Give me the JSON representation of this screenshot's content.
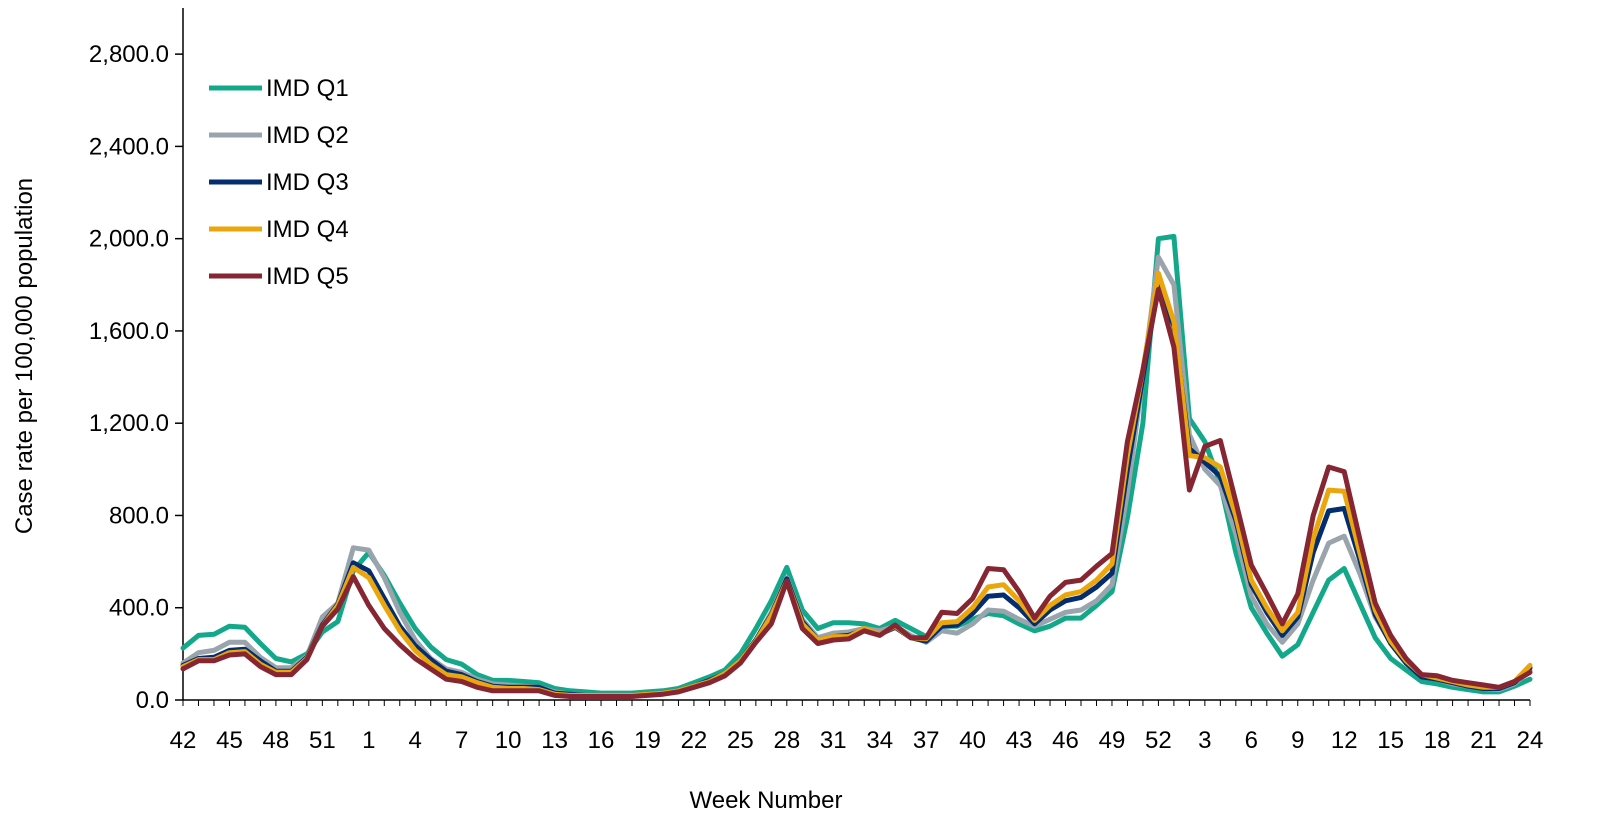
{
  "chart_data": {
    "type": "line",
    "title": "",
    "xlabel": "Week Number",
    "ylabel": "Case rate per 100,000 population",
    "ylim": [
      0,
      3000
    ],
    "y_ticks": [
      0,
      400,
      800,
      1200,
      1600,
      2000,
      2400,
      2800
    ],
    "y_tick_labels": [
      "0.0",
      "400.0",
      "800.0",
      "1,200.0",
      "1,600.0",
      "2,000.0",
      "2,400.0",
      "2,800.0"
    ],
    "grid": false,
    "legend_position": "top-left",
    "x": [
      42,
      43,
      44,
      45,
      46,
      47,
      48,
      49,
      50,
      51,
      52,
      53,
      1,
      2,
      3,
      4,
      5,
      6,
      7,
      8,
      9,
      10,
      11,
      12,
      13,
      14,
      15,
      16,
      17,
      18,
      19,
      20,
      21,
      22,
      23,
      24,
      25,
      26,
      27,
      28,
      29,
      30,
      31,
      32,
      33,
      34,
      35,
      36,
      37,
      38,
      39,
      40,
      41,
      42,
      43,
      44,
      45,
      46,
      47,
      48,
      49,
      50,
      51,
      52,
      1,
      2,
      3,
      4,
      5,
      6,
      7,
      8,
      9,
      10,
      11,
      12,
      13,
      14,
      15,
      16,
      17,
      18,
      19,
      20,
      21,
      22,
      23,
      24
    ],
    "x_tick_labels": [
      "42",
      "45",
      "48",
      "51",
      "1",
      "4",
      "7",
      "10",
      "13",
      "16",
      "19",
      "22",
      "25",
      "28",
      "31",
      "34",
      "37",
      "40",
      "43",
      "46",
      "49",
      "52",
      "3",
      "6",
      "9",
      "12",
      "15",
      "18",
      "21",
      "24"
    ],
    "series": [
      {
        "name": "IMD Q1",
        "color": "#13a88a",
        "values": [
          225,
          280,
          285,
          320,
          315,
          245,
          180,
          165,
          200,
          295,
          340,
          560,
          640,
          540,
          420,
          310,
          230,
          175,
          155,
          110,
          85,
          85,
          80,
          75,
          50,
          40,
          35,
          30,
          30,
          30,
          35,
          40,
          50,
          75,
          100,
          130,
          200,
          310,
          430,
          575,
          390,
          310,
          335,
          335,
          330,
          310,
          345,
          310,
          275,
          320,
          320,
          350,
          375,
          365,
          330,
          300,
          320,
          355,
          355,
          410,
          470,
          790,
          1200,
          2000,
          2010,
          1220,
          1120,
          940,
          640,
          400,
          290,
          190,
          240,
          380,
          520,
          570,
          420,
          270,
          180,
          130,
          80,
          70,
          55,
          45,
          35,
          35,
          60,
          90
        ]
      },
      {
        "name": "IMD Q2",
        "color": "#9aa4ad",
        "values": [
          160,
          205,
          215,
          250,
          250,
          185,
          140,
          140,
          190,
          360,
          420,
          660,
          650,
          530,
          380,
          260,
          180,
          135,
          120,
          90,
          70,
          65,
          60,
          55,
          35,
          25,
          20,
          20,
          20,
          20,
          25,
          30,
          40,
          60,
          80,
          110,
          170,
          260,
          380,
          530,
          350,
          270,
          290,
          295,
          310,
          300,
          320,
          280,
          250,
          300,
          290,
          330,
          390,
          385,
          350,
          320,
          350,
          380,
          390,
          430,
          500,
          900,
          1400,
          1920,
          1800,
          1150,
          1000,
          930,
          720,
          450,
          330,
          250,
          330,
          520,
          680,
          710,
          550,
          360,
          250,
          160,
          100,
          90,
          70,
          60,
          50,
          45,
          70,
          130
        ]
      },
      {
        "name": "IMD Q3",
        "color": "#032d6f",
        "values": [
          150,
          180,
          185,
          215,
          220,
          170,
          125,
          125,
          185,
          325,
          415,
          595,
          560,
          440,
          320,
          235,
          175,
          125,
          110,
          80,
          60,
          55,
          55,
          55,
          30,
          25,
          20,
          20,
          20,
          20,
          25,
          30,
          40,
          60,
          85,
          115,
          170,
          260,
          370,
          525,
          340,
          260,
          275,
          280,
          305,
          285,
          315,
          270,
          255,
          320,
          325,
          375,
          450,
          455,
          400,
          330,
          390,
          430,
          445,
          490,
          550,
          1000,
          1400,
          1800,
          1620,
          1090,
          1030,
          970,
          780,
          500,
          380,
          280,
          360,
          640,
          820,
          830,
          610,
          370,
          245,
          160,
          100,
          90,
          75,
          60,
          50,
          50,
          75,
          140
        ]
      },
      {
        "name": "IMD Q4",
        "color": "#eaa60c",
        "values": [
          145,
          175,
          175,
          205,
          210,
          155,
          120,
          120,
          180,
          320,
          410,
          575,
          530,
          410,
          300,
          215,
          155,
          110,
          100,
          75,
          55,
          50,
          50,
          45,
          25,
          20,
          20,
          20,
          20,
          20,
          25,
          30,
          40,
          60,
          80,
          115,
          170,
          255,
          365,
          515,
          330,
          260,
          275,
          275,
          310,
          285,
          320,
          270,
          265,
          335,
          340,
          400,
          490,
          500,
          430,
          345,
          410,
          455,
          470,
          520,
          590,
          1060,
          1430,
          1850,
          1640,
          1060,
          1050,
          1010,
          800,
          520,
          400,
          300,
          380,
          700,
          910,
          905,
          640,
          390,
          255,
          170,
          110,
          95,
          80,
          65,
          55,
          55,
          80,
          150
        ]
      },
      {
        "name": "IMD Q5",
        "color": "#862633",
        "values": [
          135,
          170,
          170,
          195,
          200,
          145,
          110,
          110,
          175,
          320,
          395,
          535,
          410,
          310,
          240,
          180,
          135,
          90,
          80,
          55,
          40,
          40,
          40,
          40,
          20,
          15,
          15,
          15,
          15,
          15,
          20,
          25,
          35,
          55,
          75,
          105,
          160,
          250,
          330,
          515,
          310,
          245,
          260,
          265,
          300,
          280,
          325,
          270,
          270,
          380,
          375,
          440,
          570,
          565,
          470,
          355,
          450,
          510,
          520,
          580,
          635,
          1120,
          1430,
          1780,
          1530,
          910,
          1100,
          1125,
          860,
          585,
          460,
          330,
          460,
          800,
          1010,
          990,
          700,
          420,
          280,
          180,
          110,
          105,
          85,
          75,
          65,
          55,
          80,
          120
        ]
      }
    ]
  }
}
